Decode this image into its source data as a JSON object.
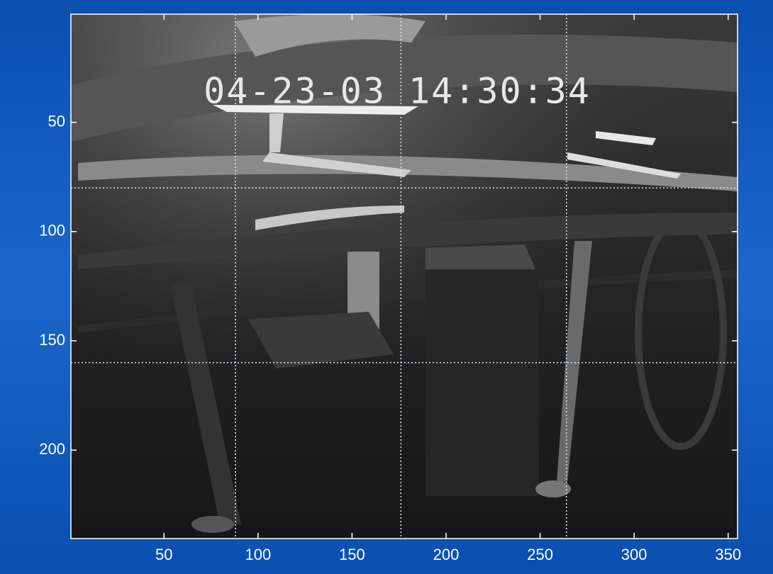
{
  "chart_data": {
    "type": "image",
    "annotation": "04-23-03  14:30:34",
    "xlim": [
      0.5,
      355
    ],
    "ylim": [
      0.5,
      240.5
    ],
    "y_reversed": true,
    "xticks": [
      50,
      100,
      150,
      200,
      250,
      300,
      350
    ],
    "yticks": [
      50,
      100,
      150,
      200
    ],
    "vlines": [
      88,
      176,
      264
    ],
    "hlines": [
      80,
      160
    ],
    "line_color": "#d8e8ff"
  }
}
